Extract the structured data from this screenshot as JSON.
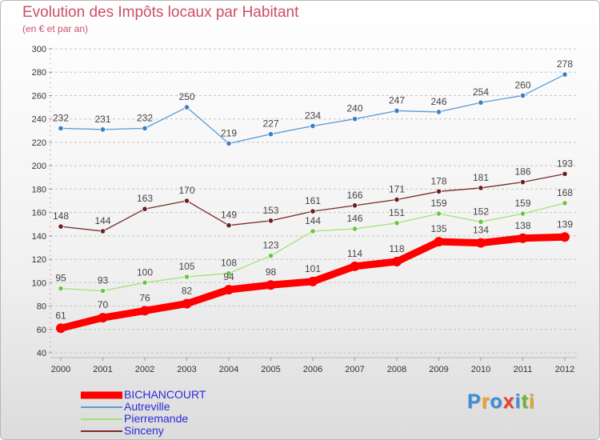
{
  "chart_data": {
    "type": "line",
    "title": "Evolution des Impôts locaux par Habitant",
    "subtitle": "(en € et par an)",
    "x": [
      "2000",
      "2001",
      "2002",
      "2003",
      "2004",
      "2005",
      "2006",
      "2007",
      "2008",
      "2009",
      "2010",
      "2011",
      "2012"
    ],
    "ylim": [
      40,
      300
    ],
    "yticks": [
      40,
      60,
      80,
      100,
      120,
      140,
      160,
      180,
      200,
      220,
      240,
      260,
      280,
      300
    ],
    "grid": "horizontal dashed",
    "legend_position": "bottom-left",
    "series": [
      {
        "name": "Autreville",
        "color": "#5a9bd5",
        "point_color": "#3b7fc4",
        "values": [
          232,
          231,
          232,
          250,
          219,
          227,
          234,
          240,
          247,
          246,
          254,
          260,
          278
        ],
        "labels": [
          "232",
          "231",
          "232",
          "250",
          "219",
          "227",
          "234",
          "240",
          "247",
          "246",
          "254",
          "260",
          "278"
        ]
      },
      {
        "name": "Sinceny",
        "color": "#7a2b2b",
        "point_color": "#6e1f1f",
        "values": [
          148,
          144,
          163,
          170,
          149,
          153,
          161,
          166,
          171,
          178,
          181,
          186,
          193
        ],
        "labels": [
          "148",
          "144",
          "163",
          "170",
          "149",
          "153",
          "161",
          "166",
          "171",
          "178",
          "181",
          "186",
          "193"
        ]
      },
      {
        "name": "Pierremande",
        "color": "#a6e07a",
        "point_color": "#6cc540",
        "values": [
          95,
          93,
          100,
          105,
          108,
          123,
          144,
          146,
          151,
          159,
          152,
          159,
          168
        ],
        "labels": [
          "95",
          "93",
          "100",
          "105",
          "108",
          "123",
          "144",
          "146",
          "151",
          "159",
          "152",
          "159",
          "168"
        ]
      },
      {
        "name": "BICHANCOURT",
        "color": "#ff0000",
        "point_color": "#ff0000",
        "thick": true,
        "values": [
          61,
          70,
          76,
          82,
          94,
          98,
          101,
          114,
          118,
          135,
          134,
          138,
          139
        ],
        "labels": [
          "61",
          "70",
          "76",
          "82",
          "94",
          "98",
          "101",
          "114",
          "118",
          "135",
          "134",
          "138",
          "139"
        ]
      }
    ],
    "legend": [
      {
        "name": "BICHANCOURT",
        "color": "#ff0000",
        "thick": true
      },
      {
        "name": "Autreville",
        "color": "#5a9bd5",
        "thick": false
      },
      {
        "name": "Pierremande",
        "color": "#a6e07a",
        "thick": false
      },
      {
        "name": "Sinceny",
        "color": "#7a2b2b",
        "thick": false
      }
    ]
  },
  "logo": {
    "text": "Proxiti",
    "letters": [
      {
        "ch": "P",
        "color": "#3a8fd8"
      },
      {
        "ch": "r",
        "color": "#f0a020"
      },
      {
        "ch": "o",
        "color": "#3a8fd8"
      },
      {
        "ch": "x",
        "color": "#e84030"
      },
      {
        "ch": "i",
        "color": "#3a8fd8"
      },
      {
        "ch": "t",
        "color": "#68b830"
      },
      {
        "ch": "i",
        "color": "#f0a020"
      }
    ]
  }
}
